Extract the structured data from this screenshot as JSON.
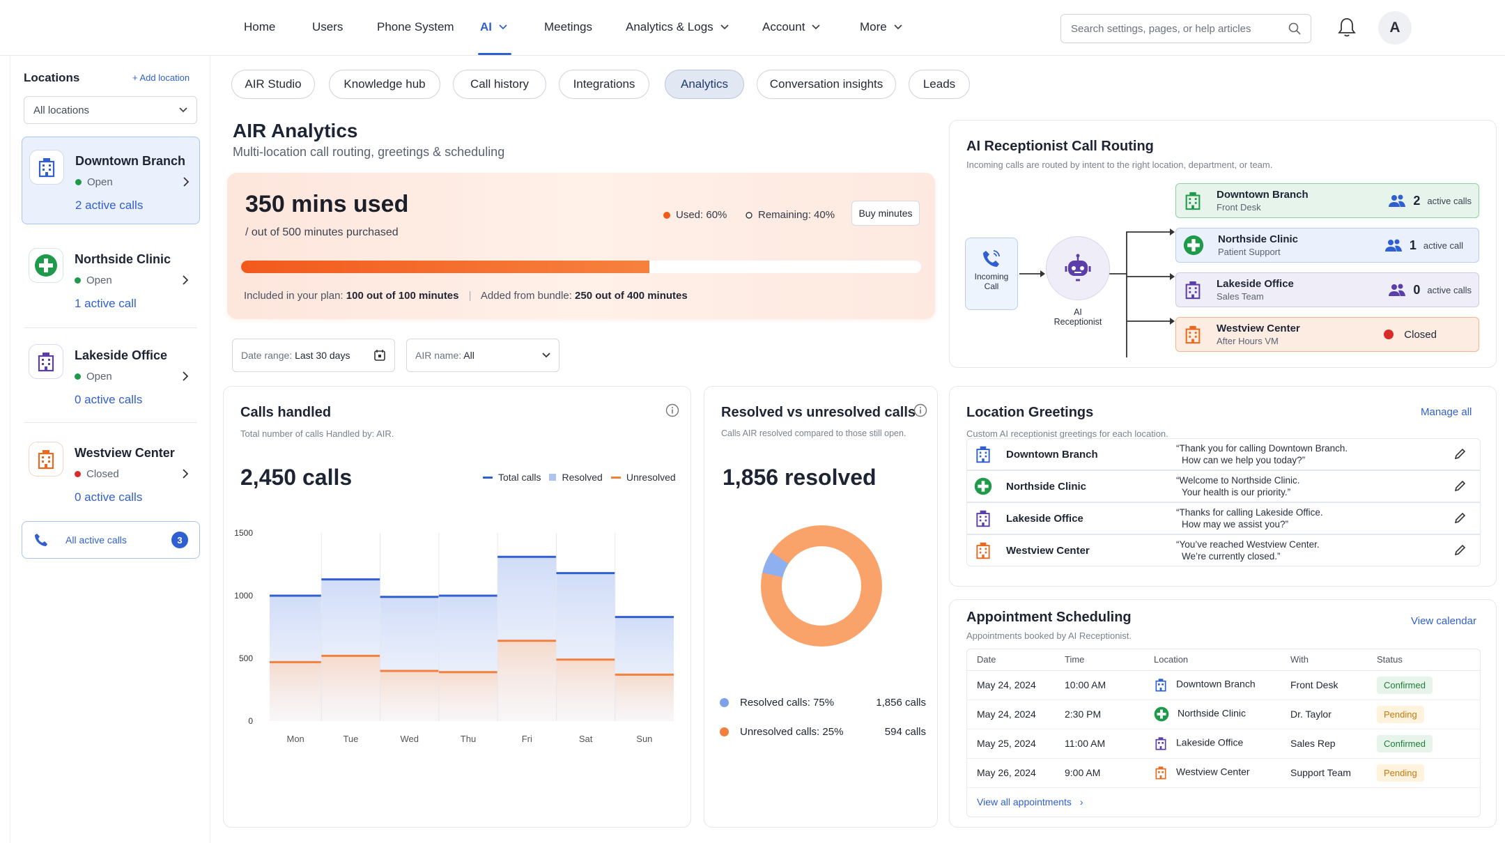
{
  "nav": {
    "items": [
      "Home",
      "Users",
      "Phone System",
      "AI",
      "Meetings",
      "Analytics & Logs",
      "Account",
      "More"
    ],
    "search_placeholder": "Search settings, pages, or help articles",
    "avatar_initial": "A"
  },
  "sidebar": {
    "title": "Locations",
    "add_label": "Add location",
    "filter_value": "All locations",
    "locations": [
      {
        "name": "Downtown Branch",
        "status": "Open",
        "active": "2 active calls"
      },
      {
        "name": "Northside Clinic",
        "status": "Open",
        "active": "1 active call"
      },
      {
        "name": "Lakeside Office",
        "status": "Open",
        "active": "0 active calls"
      },
      {
        "name": "Westview Center",
        "status": "Closed",
        "active": "0 active calls"
      }
    ],
    "all_calls_label": "All active calls",
    "all_calls_count": "3"
  },
  "tabs": [
    "AIR Studio",
    "Knowledge hub",
    "Call history",
    "Integrations",
    "Analytics",
    "Conversation insights",
    "Leads"
  ],
  "page": {
    "title": "AIR Analytics",
    "subtitle": "Multi-location call routing, greetings & scheduling"
  },
  "usage": {
    "headline": "350 mins used",
    "of_label": "/ out of 500 minutes purchased",
    "used_label": "Used: 60%",
    "remaining_label": "Remaining: 40%",
    "buy_label": "Buy minutes",
    "used_fraction": 0.6,
    "plan_label": "Included in your plan:",
    "plan_value": "100 out of 100 minutes",
    "bundle_label": "Added from bundle:",
    "bundle_value": "250 out of 400 minutes",
    "colors": {
      "used": "#f25a1c",
      "remaining": "#ffffff"
    }
  },
  "filters": {
    "date_label": "Date range:",
    "date_value": "Last 30 days",
    "air_label": "AIR name:",
    "air_value": "All"
  },
  "calls_card": {
    "title": "Calls handled",
    "desc": "Total number of calls Handled by: AIR.",
    "total": "2,450 calls",
    "legend": [
      "Total calls",
      "Resolved",
      "Unresolved"
    ]
  },
  "resolved_card": {
    "title": "Resolved vs unresolved calls",
    "desc": "Calls AIR resolved compared to those still open.",
    "headline": "1,856 resolved",
    "rows": [
      {
        "label": "Resolved calls: 75%",
        "value": "1,856 calls"
      },
      {
        "label": "Unresolved calls: 25%",
        "value": "594 calls"
      }
    ]
  },
  "chart_data": [
    {
      "type": "area",
      "categories": [
        "Mon",
        "Tue",
        "Wed",
        "Thu",
        "Fri",
        "Sat",
        "Sun"
      ],
      "series": [
        {
          "name": "Total calls",
          "values": [
            1000,
            1130,
            990,
            1000,
            1310,
            1180,
            830
          ],
          "color": "#2f5fd0"
        },
        {
          "name": "Resolved",
          "values": [
            1000,
            1130,
            990,
            1000,
            1310,
            1180,
            830
          ],
          "color": "#aec3f0"
        },
        {
          "name": "Unresolved",
          "values": [
            470,
            520,
            400,
            390,
            640,
            490,
            370
          ],
          "color": "#f0803c"
        }
      ],
      "yticks": [
        0,
        500,
        1000,
        1500
      ],
      "ylim": [
        0,
        1500
      ]
    },
    {
      "type": "pie",
      "slices": [
        {
          "name": "Resolved calls",
          "value": 1856,
          "color": "#7ea1e8"
        },
        {
          "name": "Unresolved calls",
          "value": 594,
          "color": "#f9a36b"
        }
      ]
    }
  ],
  "routing": {
    "title": "AI Receptionist Call Routing",
    "desc": "Incoming calls are routed by intent to the right location, department, or team.",
    "incoming_label": [
      "Incoming",
      "Call"
    ],
    "ai_label": [
      "AI",
      "Receptionist"
    ],
    "routes": [
      {
        "name": "Downtown Branch",
        "dept": "Front Desk",
        "count": "2",
        "unit": "active calls",
        "bg": "#e7f4ec",
        "border": "#8fcfa3"
      },
      {
        "name": "Northside Clinic",
        "dept": "Patient Support",
        "count": "1",
        "unit": "active call",
        "bg": "#eaf1fd",
        "border": "#b7cdf1"
      },
      {
        "name": "Lakeside Office",
        "dept": "Sales Team",
        "count": "0",
        "unit": "active calls",
        "bg": "#efedf8",
        "border": "#cfc8ea"
      },
      {
        "name": "Westview Center",
        "dept": "After Hours VM",
        "closed": "Closed",
        "bg": "#fdece2",
        "border": "#f5b58c"
      }
    ]
  },
  "greetings": {
    "title": "Location Greetings",
    "desc": "Custom AI receptionist greetings for each location.",
    "manage": "Manage all",
    "items": [
      {
        "name": "Downtown Branch",
        "q1": "“Thank you for calling Downtown Branch.",
        "q2": "How can we help you today?”"
      },
      {
        "name": "Northside Clinic",
        "q1": "“Welcome to Northside Clinic.",
        "q2": "Your health is our priority.”"
      },
      {
        "name": "Lakeside Office",
        "q1": "“Thanks for calling Lakeside Office.",
        "q2": "How may we assist you?”"
      },
      {
        "name": "Westview Center",
        "q1": "“You’ve reached Westview Center.",
        "q2": "We’re currently closed.”"
      }
    ]
  },
  "appointments": {
    "title": "Appointment Scheduling",
    "desc": "Appointments booked by AI Receptionist.",
    "view_calendar": "View calendar",
    "columns": [
      "Date",
      "Time",
      "Location",
      "With",
      "Status"
    ],
    "rows": [
      {
        "date": "May 24, 2024",
        "time": "10:00 AM",
        "location": "Downtown Branch",
        "with": "Front Desk",
        "status": "Confirmed"
      },
      {
        "date": "May 24, 2024",
        "time": "2:30 PM",
        "location": "Northside Clinic",
        "with": "Dr. Taylor",
        "status": "Pending"
      },
      {
        "date": "May 25, 2024",
        "time": "11:00 AM",
        "location": "Lakeside Office",
        "with": "Sales Rep",
        "status": "Confirmed"
      },
      {
        "date": "May 26, 2024",
        "time": "9:00 AM",
        "location": "Westview Center",
        "with": "Support Team",
        "status": "Pending"
      }
    ],
    "view_all": "View all appointments"
  }
}
